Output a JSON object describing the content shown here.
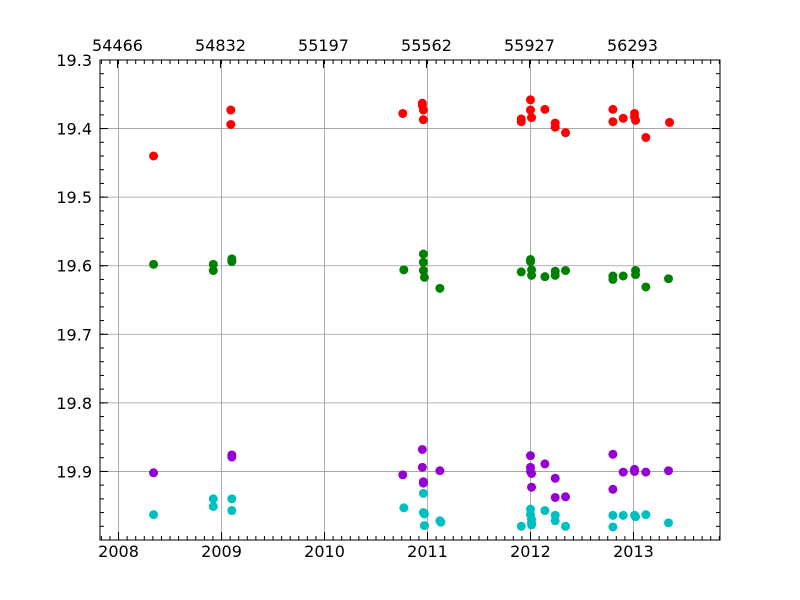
{
  "chart_data": {
    "type": "scatter",
    "title": "",
    "xlabel": "",
    "ylabel": "",
    "x_unit": "year",
    "xlim": [
      2007.82,
      2013.84
    ],
    "ylim": [
      19.3,
      20.0
    ],
    "y_inverted": true,
    "grid": true,
    "legend": "none",
    "x_ticks": [
      2008,
      2009,
      2010,
      2011,
      2012,
      2013
    ],
    "x_tick_labels": [
      "2008",
      "2009",
      "2010",
      "2011",
      "2012",
      "2013"
    ],
    "x_top_ticks": [
      2007.99,
      2008.99,
      2009.99,
      2010.99,
      2011.99,
      2012.99
    ],
    "x_top_tick_labels": [
      "54466",
      "54832",
      "55197",
      "55562",
      "55927",
      "56293"
    ],
    "y_ticks": [
      19.3,
      19.4,
      19.5,
      19.6,
      19.7,
      19.8,
      19.9
    ],
    "y_tick_labels": [
      "19.3",
      "19.4",
      "19.5",
      "19.6",
      "19.7",
      "19.8",
      "19.9"
    ],
    "series": [
      {
        "color": "#ff0000",
        "points": [
          [
            2008.34,
            19.44
          ],
          [
            2009.09,
            19.373
          ],
          [
            2009.09,
            19.394
          ],
          [
            2010.76,
            19.378
          ],
          [
            2010.95,
            19.363
          ],
          [
            2010.95,
            19.366
          ],
          [
            2010.96,
            19.373
          ],
          [
            2010.96,
            19.387
          ],
          [
            2011.91,
            19.386
          ],
          [
            2011.91,
            19.39
          ],
          [
            2012.0,
            19.358
          ],
          [
            2012.0,
            19.373
          ],
          [
            2012.01,
            19.384
          ],
          [
            2012.14,
            19.372
          ],
          [
            2012.24,
            19.392
          ],
          [
            2012.24,
            19.398
          ],
          [
            2012.34,
            19.406
          ],
          [
            2012.8,
            19.372
          ],
          [
            2012.8,
            19.39
          ],
          [
            2012.9,
            19.385
          ],
          [
            2013.01,
            19.378
          ],
          [
            2013.01,
            19.383
          ],
          [
            2013.02,
            19.388
          ],
          [
            2013.12,
            19.413
          ],
          [
            2013.35,
            19.391
          ]
        ]
      },
      {
        "color": "#008000",
        "points": [
          [
            2008.34,
            19.598
          ],
          [
            2008.92,
            19.598
          ],
          [
            2008.92,
            19.607
          ],
          [
            2009.1,
            19.59
          ],
          [
            2009.1,
            19.594
          ],
          [
            2010.77,
            19.606
          ],
          [
            2010.96,
            19.583
          ],
          [
            2010.96,
            19.595
          ],
          [
            2010.96,
            19.607
          ],
          [
            2010.97,
            19.617
          ],
          [
            2011.12,
            19.633
          ],
          [
            2011.91,
            19.609
          ],
          [
            2012.0,
            19.591
          ],
          [
            2012.0,
            19.594
          ],
          [
            2012.01,
            19.606
          ],
          [
            2012.01,
            19.614
          ],
          [
            2012.14,
            19.616
          ],
          [
            2012.24,
            19.608
          ],
          [
            2012.24,
            19.614
          ],
          [
            2012.34,
            19.607
          ],
          [
            2012.8,
            19.615
          ],
          [
            2012.8,
            19.62
          ],
          [
            2012.9,
            19.615
          ],
          [
            2013.02,
            19.607
          ],
          [
            2013.02,
            19.613
          ],
          [
            2013.12,
            19.631
          ],
          [
            2013.34,
            19.619
          ]
        ]
      },
      {
        "color": "#9400d3",
        "points": [
          [
            2008.34,
            19.902
          ],
          [
            2009.1,
            19.876
          ],
          [
            2009.1,
            19.879
          ],
          [
            2010.76,
            19.905
          ],
          [
            2010.95,
            19.868
          ],
          [
            2010.95,
            19.894
          ],
          [
            2010.96,
            19.915
          ],
          [
            2010.96,
            19.917
          ],
          [
            2011.12,
            19.899
          ],
          [
            2012.0,
            19.877
          ],
          [
            2012.0,
            19.894
          ],
          [
            2012.0,
            19.9
          ],
          [
            2012.01,
            19.903
          ],
          [
            2012.01,
            19.923
          ],
          [
            2012.14,
            19.889
          ],
          [
            2012.24,
            19.91
          ],
          [
            2012.24,
            19.938
          ],
          [
            2012.34,
            19.937
          ],
          [
            2012.8,
            19.875
          ],
          [
            2012.8,
            19.926
          ],
          [
            2012.9,
            19.901
          ],
          [
            2013.01,
            19.897
          ],
          [
            2013.01,
            19.9
          ],
          [
            2013.12,
            19.901
          ],
          [
            2013.34,
            19.899
          ]
        ]
      },
      {
        "color": "#00bfbf",
        "points": [
          [
            2008.34,
            19.963
          ],
          [
            2008.92,
            19.94
          ],
          [
            2008.92,
            19.951
          ],
          [
            2009.1,
            19.94
          ],
          [
            2009.1,
            19.957
          ],
          [
            2010.77,
            19.953
          ],
          [
            2010.96,
            19.932
          ],
          [
            2010.96,
            19.96
          ],
          [
            2010.97,
            19.962
          ],
          [
            2010.97,
            19.979
          ],
          [
            2011.12,
            19.972
          ],
          [
            2011.13,
            19.974
          ],
          [
            2011.91,
            19.98
          ],
          [
            2012.0,
            19.955
          ],
          [
            2012.0,
            19.963
          ],
          [
            2012.01,
            19.97
          ],
          [
            2012.01,
            19.975
          ],
          [
            2012.01,
            19.978
          ],
          [
            2012.14,
            19.957
          ],
          [
            2012.24,
            19.964
          ],
          [
            2012.24,
            19.972
          ],
          [
            2012.34,
            19.98
          ],
          [
            2012.8,
            19.964
          ],
          [
            2012.8,
            19.981
          ],
          [
            2012.9,
            19.964
          ],
          [
            2013.01,
            19.964
          ],
          [
            2013.02,
            19.966
          ],
          [
            2013.12,
            19.963
          ],
          [
            2013.34,
            19.975
          ]
        ]
      }
    ]
  }
}
